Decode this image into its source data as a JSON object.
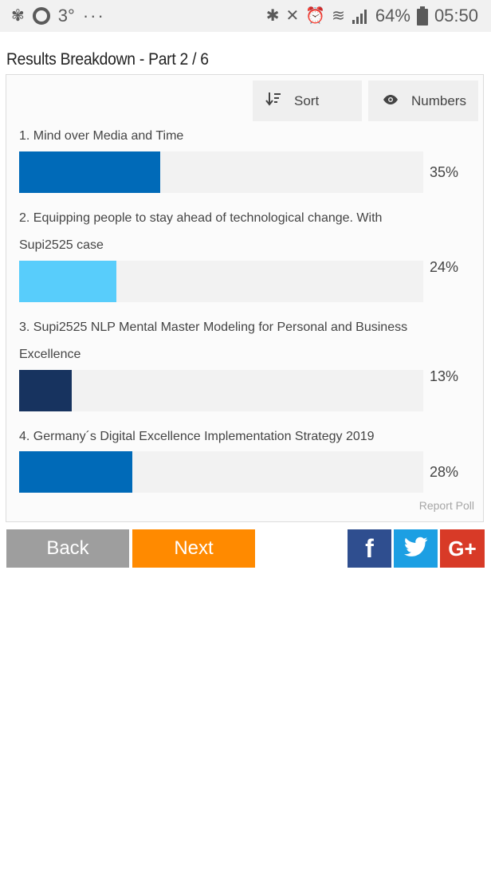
{
  "status_bar": {
    "temperature": "3°",
    "more": "···",
    "battery": "64%",
    "time": "05:50",
    "icons": [
      "fan-icon",
      "ring-icon",
      "bluetooth-icon",
      "mute-icon",
      "alarm-icon",
      "wifi-icon",
      "signal-icon",
      "battery-icon"
    ]
  },
  "page": {
    "title": "Results Breakdown - Part 2 / 6"
  },
  "toolbar": {
    "sort_label": "Sort",
    "numbers_label": "Numbers"
  },
  "options": [
    {
      "label": "1. Mind over Media and Time",
      "value_label": "35%",
      "value": 35,
      "color": "#006ab8"
    },
    {
      "label": "2. Equipping people to stay ahead of technological change. With Supi2525 case",
      "value_label": "24%",
      "value": 24,
      "color": "#58cdfb"
    },
    {
      "label": "3. Supi2525 NLP Mental Master Modeling for Personal and Business Excellence",
      "value_label": "13%",
      "value": 13,
      "color": "#17335f"
    },
    {
      "label": "4. Germany´s Digital Excellence Implementation Strategy 2019",
      "value_label": "28%",
      "value": 28,
      "color": "#006ab8"
    }
  ],
  "report_label": "Report Poll",
  "nav": {
    "back_label": "Back",
    "next_label": "Next"
  },
  "share": {
    "facebook": "f",
    "google": "G+"
  },
  "colors": {
    "back": "#9e9e9e",
    "next": "#ff8a00",
    "facebook": "#2f4e8f",
    "twitter": "#1c9fe3",
    "google": "#d83a27"
  }
}
